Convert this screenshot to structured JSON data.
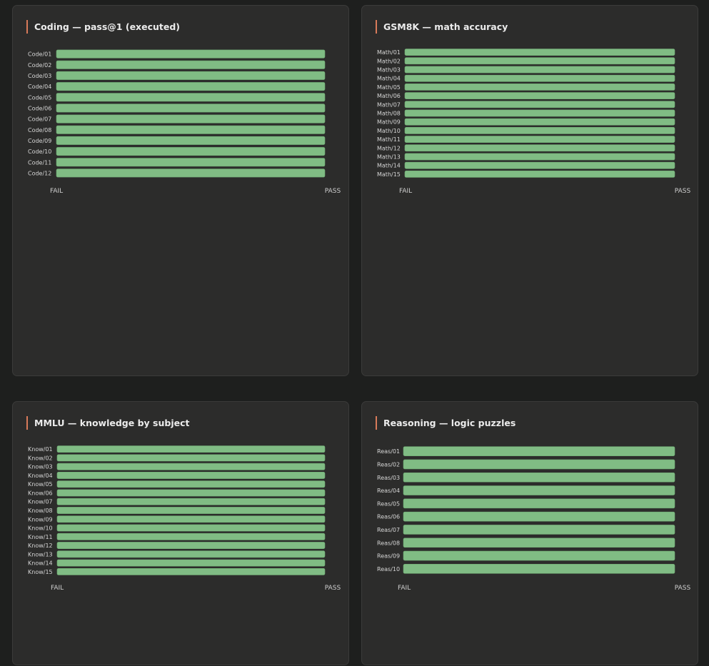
{
  "chart_data": [
    {
      "type": "bar",
      "title": "Coding — pass@1 (executed)",
      "categories": [
        "Code/01",
        "Code/02",
        "Code/03",
        "Code/04",
        "Code/05",
        "Code/06",
        "Code/07",
        "Code/08",
        "Code/09",
        "Code/10",
        "Code/11",
        "Code/12"
      ],
      "values": [
        1,
        1,
        1,
        1,
        1,
        1,
        1,
        1,
        1,
        1,
        1,
        1
      ],
      "x_range": [
        0,
        1
      ],
      "x_tick_labels": [
        "FAIL",
        "PASS"
      ],
      "bar_color": "#80bc84"
    },
    {
      "type": "bar",
      "title": "GSM8K — math accuracy",
      "categories": [
        "Math/01",
        "Math/02",
        "Math/03",
        "Math/04",
        "Math/05",
        "Math/06",
        "Math/07",
        "Math/08",
        "Math/09",
        "Math/10",
        "Math/11",
        "Math/12",
        "Math/13",
        "Math/14",
        "Math/15"
      ],
      "values": [
        1,
        1,
        1,
        1,
        1,
        1,
        1,
        1,
        1,
        1,
        1,
        1,
        1,
        1,
        1
      ],
      "x_range": [
        0,
        1
      ],
      "x_tick_labels": [
        "FAIL",
        "PASS"
      ],
      "bar_color": "#80bc84"
    },
    {
      "type": "bar",
      "title": "MMLU — knowledge by subject",
      "categories": [
        "Know/01",
        "Know/02",
        "Know/03",
        "Know/04",
        "Know/05",
        "Know/06",
        "Know/07",
        "Know/08",
        "Know/09",
        "Know/10",
        "Know/11",
        "Know/12",
        "Know/13",
        "Know/14",
        "Know/15"
      ],
      "values": [
        1,
        1,
        1,
        1,
        1,
        1,
        1,
        1,
        1,
        1,
        1,
        1,
        1,
        1,
        1
      ],
      "x_range": [
        0,
        1
      ],
      "x_tick_labels": [
        "FAIL",
        "PASS"
      ],
      "bar_color": "#80bc84"
    },
    {
      "type": "bar",
      "title": "Reasoning — logic puzzles",
      "categories": [
        "Reas/01",
        "Reas/02",
        "Reas/03",
        "Reas/04",
        "Reas/05",
        "Reas/06",
        "Reas/07",
        "Reas/08",
        "Reas/09",
        "Reas/10"
      ],
      "values": [
        1,
        1,
        1,
        1,
        1,
        1,
        1,
        1,
        1,
        1
      ],
      "x_range": [
        0,
        1
      ],
      "x_tick_labels": [
        "FAIL",
        "PASS"
      ],
      "bar_color": "#80bc84"
    }
  ]
}
